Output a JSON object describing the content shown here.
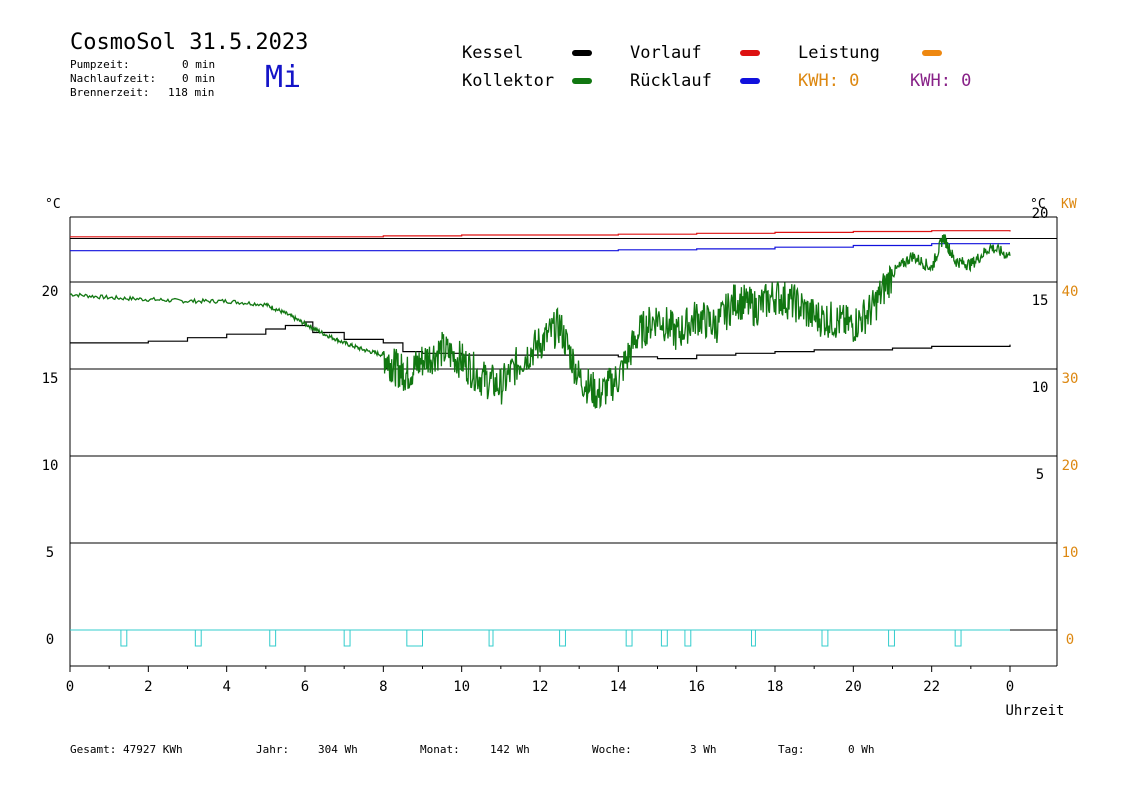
{
  "header": {
    "title": "CosmoSol 31.5.2023",
    "weekday": "Mi",
    "stats": [
      {
        "label": "Pumpzeit:",
        "value": "0 min"
      },
      {
        "label": "Nachlaufzeit:",
        "value": "0 min"
      },
      {
        "label": "Brennerzeit:",
        "value": "118 min"
      }
    ]
  },
  "legend": {
    "kessel": {
      "label": "Kessel",
      "color": "#000000"
    },
    "kollektor": {
      "label": "Kollektor",
      "color": "#117711"
    },
    "vorlauf": {
      "label": "Vorlauf",
      "color": "#dd1111"
    },
    "ruecklauf": {
      "label": "Rücklauf",
      "color": "#1111dd"
    },
    "leistung": {
      "label": "Leistung",
      "color": "#ee8811"
    },
    "kwh_orange": {
      "label": "KWH: 0",
      "color": "#dd8811"
    },
    "kwh_purple": {
      "label": "KWH: 0",
      "color": "#882288"
    }
  },
  "footer": {
    "gesamt": {
      "label": "Gesamt:",
      "value": "47927 KWh"
    },
    "jahr": {
      "label": "Jahr:",
      "value": "304 Wh"
    },
    "monat": {
      "label": "Monat:",
      "value": "142 Wh"
    },
    "woche": {
      "label": "Woche:",
      "value": "3 Wh"
    },
    "tag": {
      "label": "Tag:",
      "value": "0 Wh"
    }
  },
  "chart_data": {
    "type": "line",
    "xlabel": "Uhrzeit",
    "ylabel_left": "°C",
    "ylabel_right": "°C",
    "ylabel_right2": "KW",
    "x_ticks": [
      "0",
      "2",
      "4",
      "6",
      "8",
      "10",
      "12",
      "14",
      "16",
      "18",
      "20",
      "22",
      "0"
    ],
    "y_ticks_left": [
      "0",
      "5",
      "10",
      "15",
      "20"
    ],
    "y_ticks_right": [
      "5",
      "10",
      "15",
      "20"
    ],
    "y_ticks_kw": [
      "0",
      "10",
      "20",
      "30",
      "40"
    ],
    "xlim": [
      0,
      24
    ],
    "ylim": [
      -2,
      24
    ],
    "series": [
      {
        "name": "Vorlauf",
        "color": "#dd1111",
        "x": [
          0,
          2,
          4,
          6,
          8,
          10,
          12,
          14,
          16,
          18,
          20,
          22,
          24
        ],
        "y": [
          22.6,
          22.6,
          22.6,
          22.6,
          22.65,
          22.7,
          22.7,
          22.75,
          22.8,
          22.85,
          22.9,
          22.95,
          22.9
        ]
      },
      {
        "name": "Rücklauf",
        "color": "#1111dd",
        "x": [
          0,
          2,
          4,
          6,
          8,
          10,
          12,
          14,
          16,
          18,
          20,
          22,
          24
        ],
        "y": [
          21.8,
          21.8,
          21.8,
          21.8,
          21.8,
          21.8,
          21.8,
          21.85,
          21.9,
          22.0,
          22.1,
          22.2,
          22.2
        ]
      },
      {
        "name": "Kessel",
        "color": "#000000",
        "x": [
          0,
          1,
          2,
          3,
          4,
          5,
          5.5,
          6,
          6.2,
          7,
          8,
          8.5,
          9,
          10,
          11,
          12,
          13,
          14,
          15,
          16,
          17,
          18,
          19,
          20,
          21,
          22,
          23,
          24
        ],
        "y": [
          16.5,
          16.5,
          16.6,
          16.8,
          17.0,
          17.3,
          17.5,
          17.7,
          17.1,
          16.7,
          16.5,
          16.0,
          15.9,
          15.8,
          15.8,
          15.8,
          15.8,
          15.7,
          15.6,
          15.8,
          15.9,
          16.0,
          16.1,
          16.1,
          16.2,
          16.3,
          16.3,
          16.4
        ]
      },
      {
        "name": "Kollektor",
        "color": "#117711",
        "x": [
          0,
          1,
          2,
          3,
          4,
          5,
          5.5,
          6,
          6.5,
          7,
          7.5,
          8,
          8.3,
          8.6,
          9,
          9.5,
          10,
          10.5,
          11,
          11.5,
          12,
          12.5,
          13,
          13.5,
          14,
          14.5,
          15,
          15.5,
          16,
          16.5,
          17,
          17.5,
          18,
          18.5,
          19,
          19.5,
          20,
          20.5,
          21,
          21.5,
          22,
          22.3,
          22.6,
          23,
          23.5,
          24
        ],
        "y": [
          19.3,
          19.1,
          19.0,
          18.9,
          18.9,
          18.7,
          18.2,
          17.6,
          17.0,
          16.5,
          16.1,
          15.8,
          15.1,
          14.7,
          15.5,
          16.1,
          15.5,
          14.5,
          14.0,
          15.5,
          16.5,
          17.5,
          14.5,
          13.5,
          14.5,
          17.0,
          18.0,
          17.0,
          18.0,
          17.5,
          19.0,
          18.5,
          19.2,
          18.8,
          18.0,
          17.8,
          17.5,
          18.5,
          20.5,
          21.5,
          20.8,
          22.6,
          21.2,
          21.0,
          22.0,
          21.5
        ]
      },
      {
        "name": "Leistung",
        "color": "#ee8811",
        "x": [
          0,
          24
        ],
        "y": [
          0,
          0
        ]
      }
    ],
    "pump_pulses": [
      {
        "x": 1.3,
        "w": 0.15
      },
      {
        "x": 3.2,
        "w": 0.15
      },
      {
        "x": 5.1,
        "w": 0.15
      },
      {
        "x": 7.0,
        "w": 0.15
      },
      {
        "x": 8.6,
        "w": 0.4
      },
      {
        "x": 10.7,
        "w": 0.1
      },
      {
        "x": 12.5,
        "w": 0.15
      },
      {
        "x": 14.2,
        "w": 0.15
      },
      {
        "x": 15.1,
        "w": 0.15
      },
      {
        "x": 15.7,
        "w": 0.15
      },
      {
        "x": 17.4,
        "w": 0.1
      },
      {
        "x": 19.2,
        "w": 0.15
      },
      {
        "x": 20.9,
        "w": 0.15
      },
      {
        "x": 22.6,
        "w": 0.15
      }
    ],
    "grid": true
  }
}
